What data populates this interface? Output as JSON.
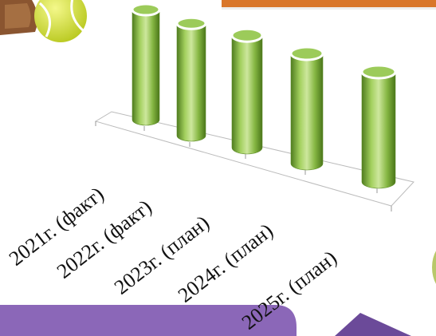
{
  "chart_data": {
    "type": "bar",
    "categories": [
      "2021г. (факт)",
      "2022г. (факт)",
      "2023г. (план)",
      "2024г. (план)",
      "2025г. (план)"
    ],
    "values": [
      100,
      102,
      102,
      100,
      100
    ],
    "title": "",
    "xlabel": "",
    "ylabel": "",
    "ylim": [
      0,
      100
    ],
    "grid": false,
    "legend": "none",
    "style": "3d-cylinder",
    "colors": {
      "bar": "#9ccb5a",
      "bar_dark": "#5c8a26",
      "bar_light": "#cfe8a0",
      "top": "#ffffff"
    }
  },
  "decor": {
    "accent_bar": "#d9762a",
    "banner": "#8b67b8",
    "arrow": "#6b4a99",
    "ball": "#d8e23a",
    "racket": "#8a5530",
    "bubble": "#b8c86a",
    "icons": [
      "tennis-racket-icon",
      "tennis-ball-icon",
      "arrow-icon"
    ]
  }
}
